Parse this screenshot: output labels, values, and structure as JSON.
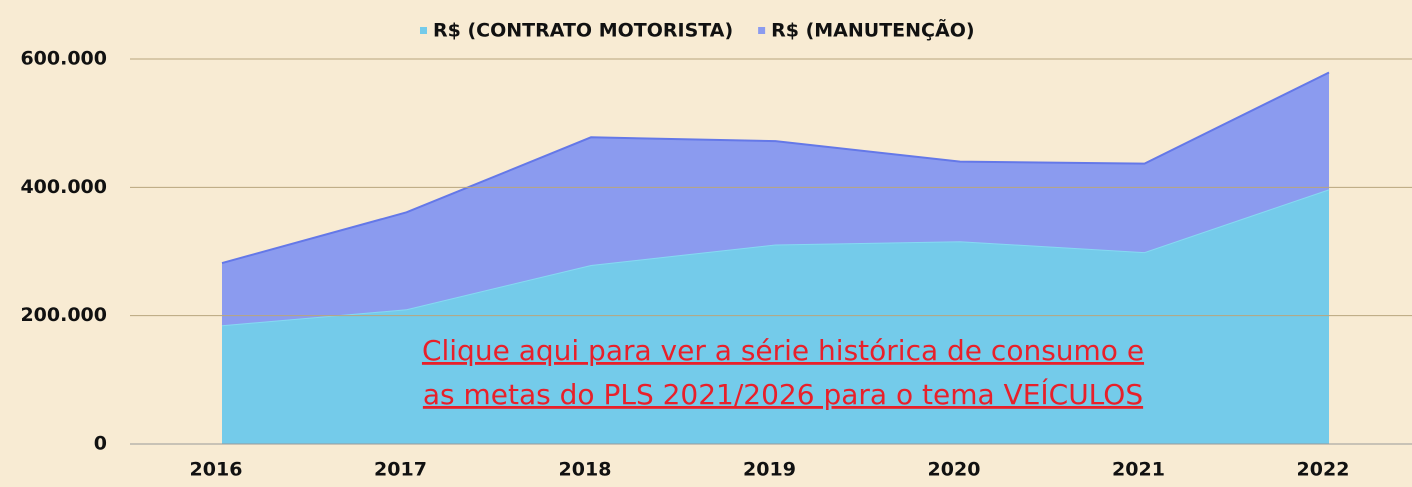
{
  "chart_data": {
    "type": "stacked_area",
    "categories": [
      "2016",
      "2017",
      "2018",
      "2019",
      "2020",
      "2021",
      "2022"
    ],
    "series": [
      {
        "name": "R$ (CONTRATO MOTORISTA)",
        "color": "#74cbea",
        "values": [
          185000,
          210000,
          279000,
          311000,
          316000,
          299000,
          397000
        ]
      },
      {
        "name": "R$ (MANUTENÇÃO)",
        "color": "#8b9bef",
        "values": [
          97000,
          151000,
          199000,
          161000,
          124000,
          138000,
          182000
        ]
      }
    ],
    "ylim": [
      0,
      600000
    ],
    "yticks": [
      0,
      {
        "value": 200000,
        "label": "200.000"
      },
      {
        "value": 400000,
        "label": "400.000"
      },
      {
        "value": 600000,
        "label": "600.000"
      }
    ],
    "grid": true,
    "legend": "top",
    "annotation": [
      "Clique aqui para ver a série histórica de consumo e",
      "as metas do PLS 2021/2026 para o tema VEÍCULOS"
    ]
  }
}
